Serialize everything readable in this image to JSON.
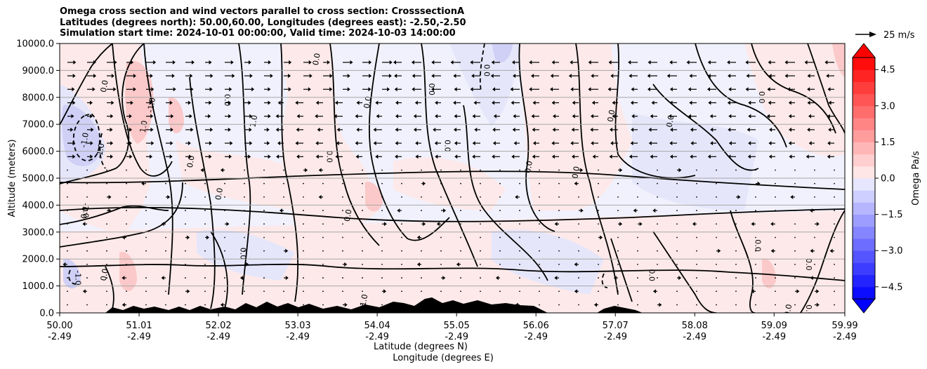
{
  "chart_data": {
    "type": "contour",
    "title_lines": [
      "Omega cross section and wind vectors parallel to cross section: CrosssectionA",
      "Latitudes (degrees north): 50.00,60.00, Longitudes (degrees east): -2.50,-2.50",
      "Simulation start time: 2024-10-01 00:00:00, Valid time: 2024-10-03 14:00:00"
    ],
    "ylabel": "Altitude (meters)",
    "xlabel_line1": "Latitude (degrees N)",
    "xlabel_line2": "Longitude (degrees E)",
    "ylim": [
      0,
      10000
    ],
    "yticks": [
      "0.0",
      "1000.0",
      "2000.0",
      "3000.0",
      "4000.0",
      "5000.0",
      "6000.0",
      "7000.0",
      "8000.0",
      "9000.0",
      "10000.0"
    ],
    "xlim": [
      50.0,
      59.99
    ],
    "xticks": [
      {
        "lat": "50.00",
        "lon": "-2.49"
      },
      {
        "lat": "51.01",
        "lon": "-2.49"
      },
      {
        "lat": "52.02",
        "lon": "-2.49"
      },
      {
        "lat": "53.03",
        "lon": "-2.49"
      },
      {
        "lat": "54.04",
        "lon": "-2.49"
      },
      {
        "lat": "55.05",
        "lon": "-2.49"
      },
      {
        "lat": "56.06",
        "lon": "-2.49"
      },
      {
        "lat": "57.07",
        "lon": "-2.49"
      },
      {
        "lat": "58.08",
        "lon": "-2.49"
      },
      {
        "lat": "59.09",
        "lon": "-2.49"
      },
      {
        "lat": "59.99",
        "lon": "-2.49"
      }
    ],
    "colorbar": {
      "label": "Omega Pa/s",
      "range": [
        -5.0,
        5.0
      ],
      "ticks": [
        "4.5",
        "3.0",
        "1.5",
        "0.0",
        "−1.5",
        "−3.0",
        "−4.5"
      ],
      "min_color": "#0000ff",
      "max_color": "#ff0000"
    },
    "quiver_key": "25 m/s",
    "contour_labels": [
      {
        "t": "0.0",
        "x": 50.6,
        "y": 8400
      },
      {
        "t": "-1.0",
        "x": 50.35,
        "y": 6400
      },
      {
        "t": "-1.0",
        "x": 50.55,
        "y": 6000
      },
      {
        "t": "-1.0",
        "x": 50.3,
        "y": 3800
      },
      {
        "t": "0.0",
        "x": 50.35,
        "y": 3700
      },
      {
        "t": "-1.0",
        "x": 50.2,
        "y": 1300
      },
      {
        "t": "0.0",
        "x": 50.6,
        "y": 1400
      },
      {
        "t": "1.0",
        "x": 51.1,
        "y": 6900
      },
      {
        "t": "-1.0",
        "x": 51.2,
        "y": 7700
      },
      {
        "t": "0.0",
        "x": 51.7,
        "y": 5600
      },
      {
        "t": "0.0",
        "x": 52.06,
        "y": 4400
      },
      {
        "t": "0.0",
        "x": 52.1,
        "y": 7900
      },
      {
        "t": "1.0",
        "x": 52.5,
        "y": 7100
      },
      {
        "t": "0.0",
        "x": 52.3,
        "y": 2200
      },
      {
        "t": "0.0",
        "x": 53.3,
        "y": 9400
      },
      {
        "t": "0.0",
        "x": 53.4,
        "y": 5800
      },
      {
        "t": "0.0",
        "x": 53.95,
        "y": 7800
      },
      {
        "t": "0.0",
        "x": 53.7,
        "y": 3600
      },
      {
        "t": "-1.0",
        "x": 53.9,
        "y": 400
      },
      {
        "t": "0.0",
        "x": 54.7,
        "y": 8300
      },
      {
        "t": "0.0",
        "x": 54.9,
        "y": 6200
      },
      {
        "t": "0.0",
        "x": 55.4,
        "y": 9000
      },
      {
        "t": "0.0",
        "x": 56.0,
        "y": 5400
      },
      {
        "t": "0.0",
        "x": 56.6,
        "y": 5200
      },
      {
        "t": "0.0",
        "x": 57.05,
        "y": 7300
      },
      {
        "t": "0.0",
        "x": 57.8,
        "y": 7100
      },
      {
        "t": "0.0",
        "x": 57.5,
        "y": 1400
      },
      {
        "t": "0.0",
        "x": 58.9,
        "y": 8000
      },
      {
        "t": "0.0",
        "x": 58.85,
        "y": 2500
      },
      {
        "t": "0.0",
        "x": 59.5,
        "y": 1800
      },
      {
        "t": "0.0",
        "x": 59.3,
        "y": 80
      },
      {
        "t": "0.0",
        "x": 59.5,
        "y": 80
      }
    ]
  }
}
